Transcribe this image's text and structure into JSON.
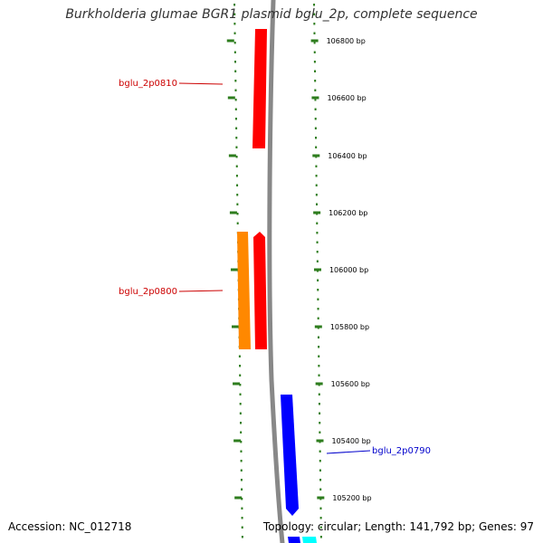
{
  "title": "Burkholderia glumae BGR1 plasmid bglu_2p, complete sequence",
  "footer": {
    "accession": "Accession: NC_012718",
    "topology": "Topology: circular; Length: 141,792 bp; Genes: 97"
  },
  "colors": {
    "backbone": "#888888",
    "tick": "#2e7d1e",
    "forward_gene": "#ff0000",
    "forward_gene_alt": "#ff8800",
    "reverse_gene": "#0000ff",
    "reverse_gene_alt": "#00ffff",
    "forward_label": "#cc0000",
    "reverse_label": "#0000cc"
  },
  "position_ticks": [
    {
      "bp": 106800,
      "label": "106800 bp"
    },
    {
      "bp": 106600,
      "label": "106600 bp"
    },
    {
      "bp": 106400,
      "label": "106400 bp"
    },
    {
      "bp": 106200,
      "label": "106200 bp"
    },
    {
      "bp": 106000,
      "label": "106000 bp"
    },
    {
      "bp": 105800,
      "label": "105800 bp"
    },
    {
      "bp": 105600,
      "label": "105600 bp"
    },
    {
      "bp": 105400,
      "label": "105400 bp"
    },
    {
      "bp": 105200,
      "label": "105200 bp"
    }
  ],
  "genes": [
    {
      "id": "bglu_2p0810",
      "strand": "forward",
      "color_key": "forward_gene",
      "label": "bglu_2p0810"
    },
    {
      "id": "bglu_2p0800",
      "strand": "forward",
      "color_key": "forward_gene",
      "label": "bglu_2p0800"
    },
    {
      "id": "orange_gene",
      "strand": "forward",
      "color_key": "forward_gene_alt",
      "label": ""
    },
    {
      "id": "bglu_2p0790",
      "strand": "reverse",
      "color_key": "reverse_gene",
      "label": "bglu_2p0790"
    },
    {
      "id": "cyan_gene",
      "strand": "reverse",
      "color_key": "reverse_gene_alt",
      "label": ""
    }
  ]
}
